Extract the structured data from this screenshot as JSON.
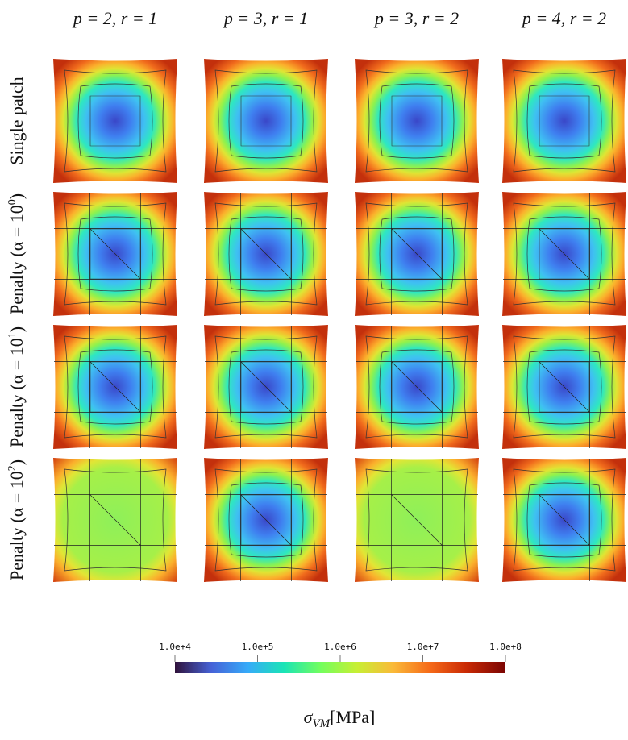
{
  "columns": [
    "p = 2, r = 1",
    "p = 3, r = 1",
    "p = 3, r = 2",
    "p = 4, r = 2"
  ],
  "rows": [
    {
      "text": "Single patch"
    },
    {
      "text": "Penalty (α = 10",
      "sup": "0",
      "close": ")"
    },
    {
      "text": "Penalty (α = 10",
      "sup": "1",
      "close": ")"
    },
    {
      "text": "Penalty (α = 10",
      "sup": "2",
      "close": ")"
    }
  ],
  "colorbar": {
    "ticks": [
      "1.0e+4",
      "1.0e+5",
      "1.0e+6",
      "1.0e+7",
      "1.0e+8"
    ],
    "label": {
      "symbol": "σ",
      "subscript": "VM",
      "unit": "[MPa]"
    }
  }
}
